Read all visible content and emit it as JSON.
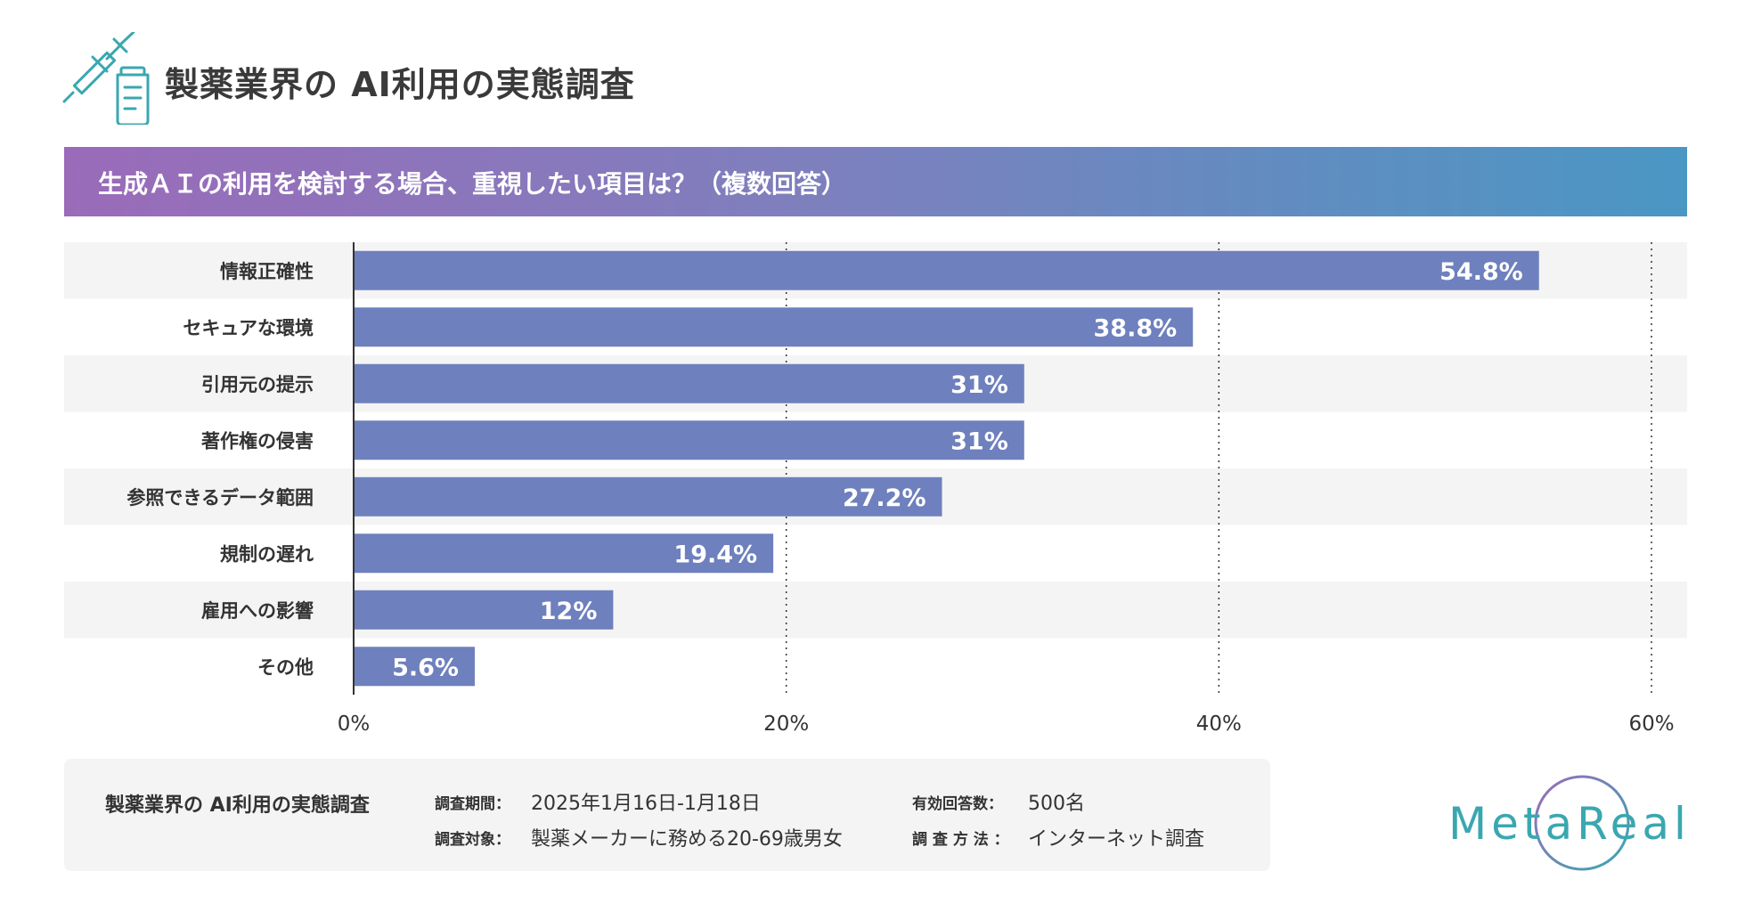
{
  "header": {
    "title": "製薬業界の AI利用の実態調査",
    "icon": "syringe-vial-icon"
  },
  "banner": {
    "question": "生成ＡＩの利用を検討する場合、重視したい項目は？（複数回答）"
  },
  "chart_data": {
    "type": "bar",
    "orientation": "horizontal",
    "categories": [
      "情報正確性",
      "セキュアな環境",
      "引用元の提示",
      "著作権の侵害",
      "参照できるデータ範囲",
      "規制の遅れ",
      "雇用への影響",
      "その他"
    ],
    "values": [
      54.8,
      38.8,
      31,
      31,
      27.2,
      19.4,
      12,
      5.6
    ],
    "value_labels": [
      "54.8%",
      "38.8%",
      "31%",
      "31%",
      "27.2%",
      "19.4%",
      "12%",
      "5.6%"
    ],
    "xlim": [
      0,
      60
    ],
    "ticks": [
      0,
      20,
      40,
      60
    ],
    "tick_labels": [
      "0%",
      "20%",
      "40%",
      "60%"
    ],
    "grid": "dotted vertical",
    "bar_color": "#6e80bd",
    "stripe_color": "#f4f4f4"
  },
  "footer": {
    "survey_title": "製薬業界の AI利用の実態調査",
    "period_label": "調査期間：",
    "period_value": "2025年1月16日-1月18日",
    "respondents_label": "有効回答数：",
    "respondents_value": "500名",
    "target_label": "調査対象：",
    "target_value": "製薬メーカーに務める20-69歳男女",
    "method_label": "調 査 方 法 ：",
    "method_value": "インターネット調査"
  },
  "brand": {
    "name": "MetaReal",
    "color": "#3aa7b0"
  }
}
